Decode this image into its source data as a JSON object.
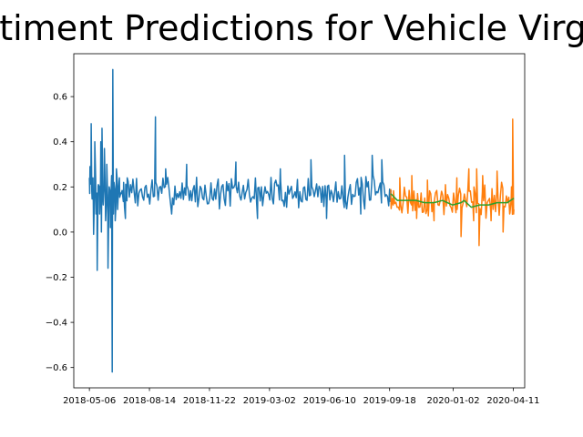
{
  "chart_data": {
    "type": "line",
    "title": "Sentiment Predictions for Vehicle Virginia",
    "xlabel": "",
    "ylabel": "",
    "x_tick_labels": [
      "2018-05-06",
      "2018-08-14",
      "2018-11-22",
      "2019-03-02",
      "2019-06-10",
      "2019-09-18",
      "2020-01-02",
      "2020-04-11"
    ],
    "x_tick_dates": [
      "2018-05-06",
      "2018-08-14",
      "2018-11-22",
      "2019-03-02",
      "2019-06-10",
      "2019-09-18",
      "2020-01-02",
      "2020-04-11"
    ],
    "y_tick_labels": [
      "−0.6",
      "−0.4",
      "−0.2",
      "0.0",
      "0.2",
      "0.4",
      "0.6"
    ],
    "y_ticks": [
      -0.6,
      -0.4,
      -0.2,
      0.0,
      0.2,
      0.4,
      0.6
    ],
    "xlim": [
      "2018-04-10",
      "2020-04-30"
    ],
    "ylim": [
      -0.69,
      0.79
    ],
    "grid": false,
    "series": [
      {
        "color": "#1f77b4",
        "x_range": [
          "2018-05-06",
          "2019-09-20"
        ],
        "seed": 7,
        "base": 0.175,
        "noise": 0.055,
        "points": [
          [
            "2018-05-06",
            0.24
          ],
          [
            "2018-05-07",
            0.29
          ],
          [
            "2018-05-09",
            0.48
          ],
          [
            "2018-05-10",
            0.18
          ],
          [
            "2018-05-12",
            0.24
          ],
          [
            "2018-05-13",
            -0.01
          ],
          [
            "2018-05-15",
            0.4
          ],
          [
            "2018-05-17",
            0.08
          ],
          [
            "2018-05-19",
            -0.17
          ],
          [
            "2018-05-21",
            0.21
          ],
          [
            "2018-05-23",
            0.08
          ],
          [
            "2018-05-25",
            0.4
          ],
          [
            "2018-05-26",
            0.0
          ],
          [
            "2018-05-27",
            0.46
          ],
          [
            "2018-05-29",
            0.12
          ],
          [
            "2018-05-31",
            0.37
          ],
          [
            "2018-06-02",
            0.05
          ],
          [
            "2018-06-04",
            0.3
          ],
          [
            "2018-06-06",
            -0.16
          ],
          [
            "2018-06-08",
            0.2
          ],
          [
            "2018-06-10",
            0.02
          ],
          [
            "2018-06-12",
            0.25
          ],
          [
            "2018-06-13",
            -0.62
          ],
          [
            "2018-06-14",
            0.72
          ],
          [
            "2018-06-15",
            0.08
          ],
          [
            "2018-06-16",
            0.22
          ],
          [
            "2018-06-18",
            0.05
          ],
          [
            "2018-06-20",
            0.28
          ],
          [
            "2018-06-22",
            0.1
          ],
          [
            "2018-06-25",
            0.24
          ],
          [
            "2018-06-28",
            0.17
          ],
          [
            "2018-07-02",
            0.22
          ],
          [
            "2018-07-05",
            0.06
          ],
          [
            "2018-07-08",
            0.24
          ],
          [
            "2018-08-24",
            0.51
          ],
          [
            "2018-09-10",
            0.28
          ],
          [
            "2018-09-20",
            0.08
          ],
          [
            "2018-10-15",
            0.3
          ],
          [
            "2019-01-05",
            0.31
          ],
          [
            "2019-02-10",
            0.06
          ],
          [
            "2019-03-20",
            0.28
          ],
          [
            "2019-05-10",
            0.32
          ],
          [
            "2019-06-05",
            0.06
          ],
          [
            "2019-07-05",
            0.34
          ],
          [
            "2019-08-01",
            0.08
          ],
          [
            "2019-08-20",
            0.34
          ],
          [
            "2019-09-05",
            0.32
          ],
          [
            "2019-09-18",
            0.19
          ]
        ]
      },
      {
        "color": "#ff7f0e",
        "x_range": [
          "2019-09-20",
          "2020-04-12"
        ],
        "seed": 23,
        "base": 0.14,
        "noise": 0.055,
        "points": [
          [
            "2019-09-20",
            0.19
          ],
          [
            "2019-09-24",
            0.12
          ],
          [
            "2019-10-05",
            0.24
          ],
          [
            "2019-10-25",
            0.25
          ],
          [
            "2019-11-02",
            0.06
          ],
          [
            "2019-11-20",
            0.23
          ],
          [
            "2019-12-01",
            0.05
          ],
          [
            "2019-12-20",
            0.21
          ],
          [
            "2020-01-08",
            0.24
          ],
          [
            "2020-01-15",
            -0.02
          ],
          [
            "2020-01-28",
            0.28
          ],
          [
            "2020-02-05",
            0.05
          ],
          [
            "2020-02-10",
            0.28
          ],
          [
            "2020-02-14",
            -0.06
          ],
          [
            "2020-02-20",
            0.25
          ],
          [
            "2020-03-05",
            0.05
          ],
          [
            "2020-03-15",
            0.27
          ],
          [
            "2020-03-25",
            0.0
          ],
          [
            "2020-04-05",
            0.08
          ],
          [
            "2020-04-08",
            0.2
          ],
          [
            "2020-04-10",
            0.5
          ],
          [
            "2020-04-12",
            0.1
          ]
        ]
      },
      {
        "color": "#2ca02c",
        "x_range": [
          "2019-09-20",
          "2020-04-12"
        ],
        "points": [
          [
            "2019-09-20",
            0.17
          ],
          [
            "2019-10-01",
            0.14
          ],
          [
            "2019-10-15",
            0.14
          ],
          [
            "2019-11-01",
            0.14
          ],
          [
            "2019-11-15",
            0.13
          ],
          [
            "2019-12-01",
            0.13
          ],
          [
            "2019-12-15",
            0.14
          ],
          [
            "2020-01-01",
            0.12
          ],
          [
            "2020-01-15",
            0.13
          ],
          [
            "2020-01-20",
            0.14
          ],
          [
            "2020-02-01",
            0.11
          ],
          [
            "2020-02-15",
            0.12
          ],
          [
            "2020-03-01",
            0.12
          ],
          [
            "2020-03-15",
            0.13
          ],
          [
            "2020-04-01",
            0.13
          ],
          [
            "2020-04-12",
            0.15
          ]
        ]
      }
    ]
  }
}
